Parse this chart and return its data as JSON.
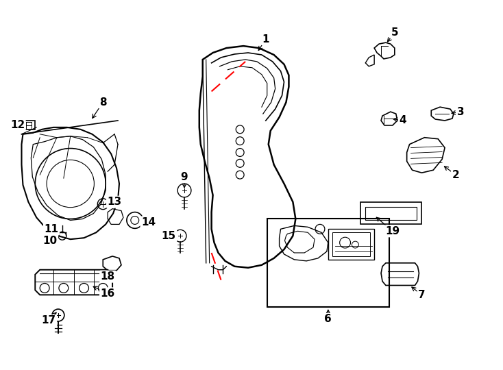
{
  "background_color": "#ffffff",
  "line_color": "#000000",
  "red_color": "#ff0000",
  "lw": 1.2,
  "fig_width": 7.34,
  "fig_height": 5.4,
  "dpi": 100
}
